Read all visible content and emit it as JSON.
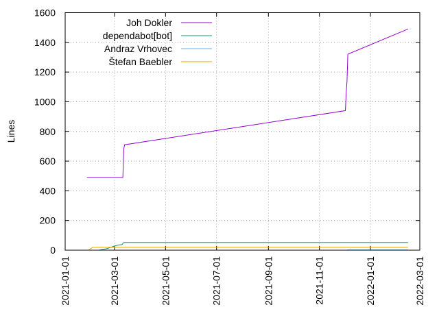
{
  "chart_data": {
    "type": "line",
    "title": "",
    "xlabel": "",
    "ylabel": "Lines",
    "ylim": [
      0,
      1600
    ],
    "xlim": [
      "2021-01-01",
      "2022-03-01"
    ],
    "yticks": [
      0,
      200,
      400,
      600,
      800,
      1000,
      1200,
      1400,
      1600
    ],
    "xticks": [
      "2021-01-01",
      "2021-03-01",
      "2021-05-01",
      "2021-07-01",
      "2021-09-01",
      "2021-11-01",
      "2022-01-01",
      "2022-03-01"
    ],
    "grid": true,
    "legend": "top-right",
    "series": [
      {
        "name": "Joh Dokler",
        "color": "#9400d3",
        "points": [
          [
            "2021-01-27",
            490
          ],
          [
            "2021-03-11",
            490
          ],
          [
            "2021-03-12",
            680
          ],
          [
            "2021-03-13",
            710
          ],
          [
            "2021-12-02",
            940
          ],
          [
            "2021-12-03",
            1060
          ],
          [
            "2021-12-04",
            1140
          ],
          [
            "2021-12-05",
            1320
          ],
          [
            "2022-02-15",
            1490
          ]
        ]
      },
      {
        "name": "dependabot[bot]",
        "color": "#009e73",
        "points": [
          [
            "2021-02-10",
            0
          ],
          [
            "2021-02-20",
            10
          ],
          [
            "2021-03-01",
            28
          ],
          [
            "2021-03-05",
            34
          ],
          [
            "2021-03-10",
            38
          ],
          [
            "2021-03-12",
            52
          ],
          [
            "2022-02-15",
            52
          ]
        ]
      },
      {
        "name": "Andraz Vrhovec",
        "color": "#56b4e9",
        "points": [
          [
            "2021-12-04",
            2
          ],
          [
            "2022-02-15",
            2
          ]
        ]
      },
      {
        "name": "Štefan Baebler",
        "color": "#e69f00",
        "points": [
          [
            "2021-01-29",
            0
          ],
          [
            "2021-02-03",
            20
          ],
          [
            "2022-02-15",
            20
          ]
        ]
      }
    ]
  }
}
